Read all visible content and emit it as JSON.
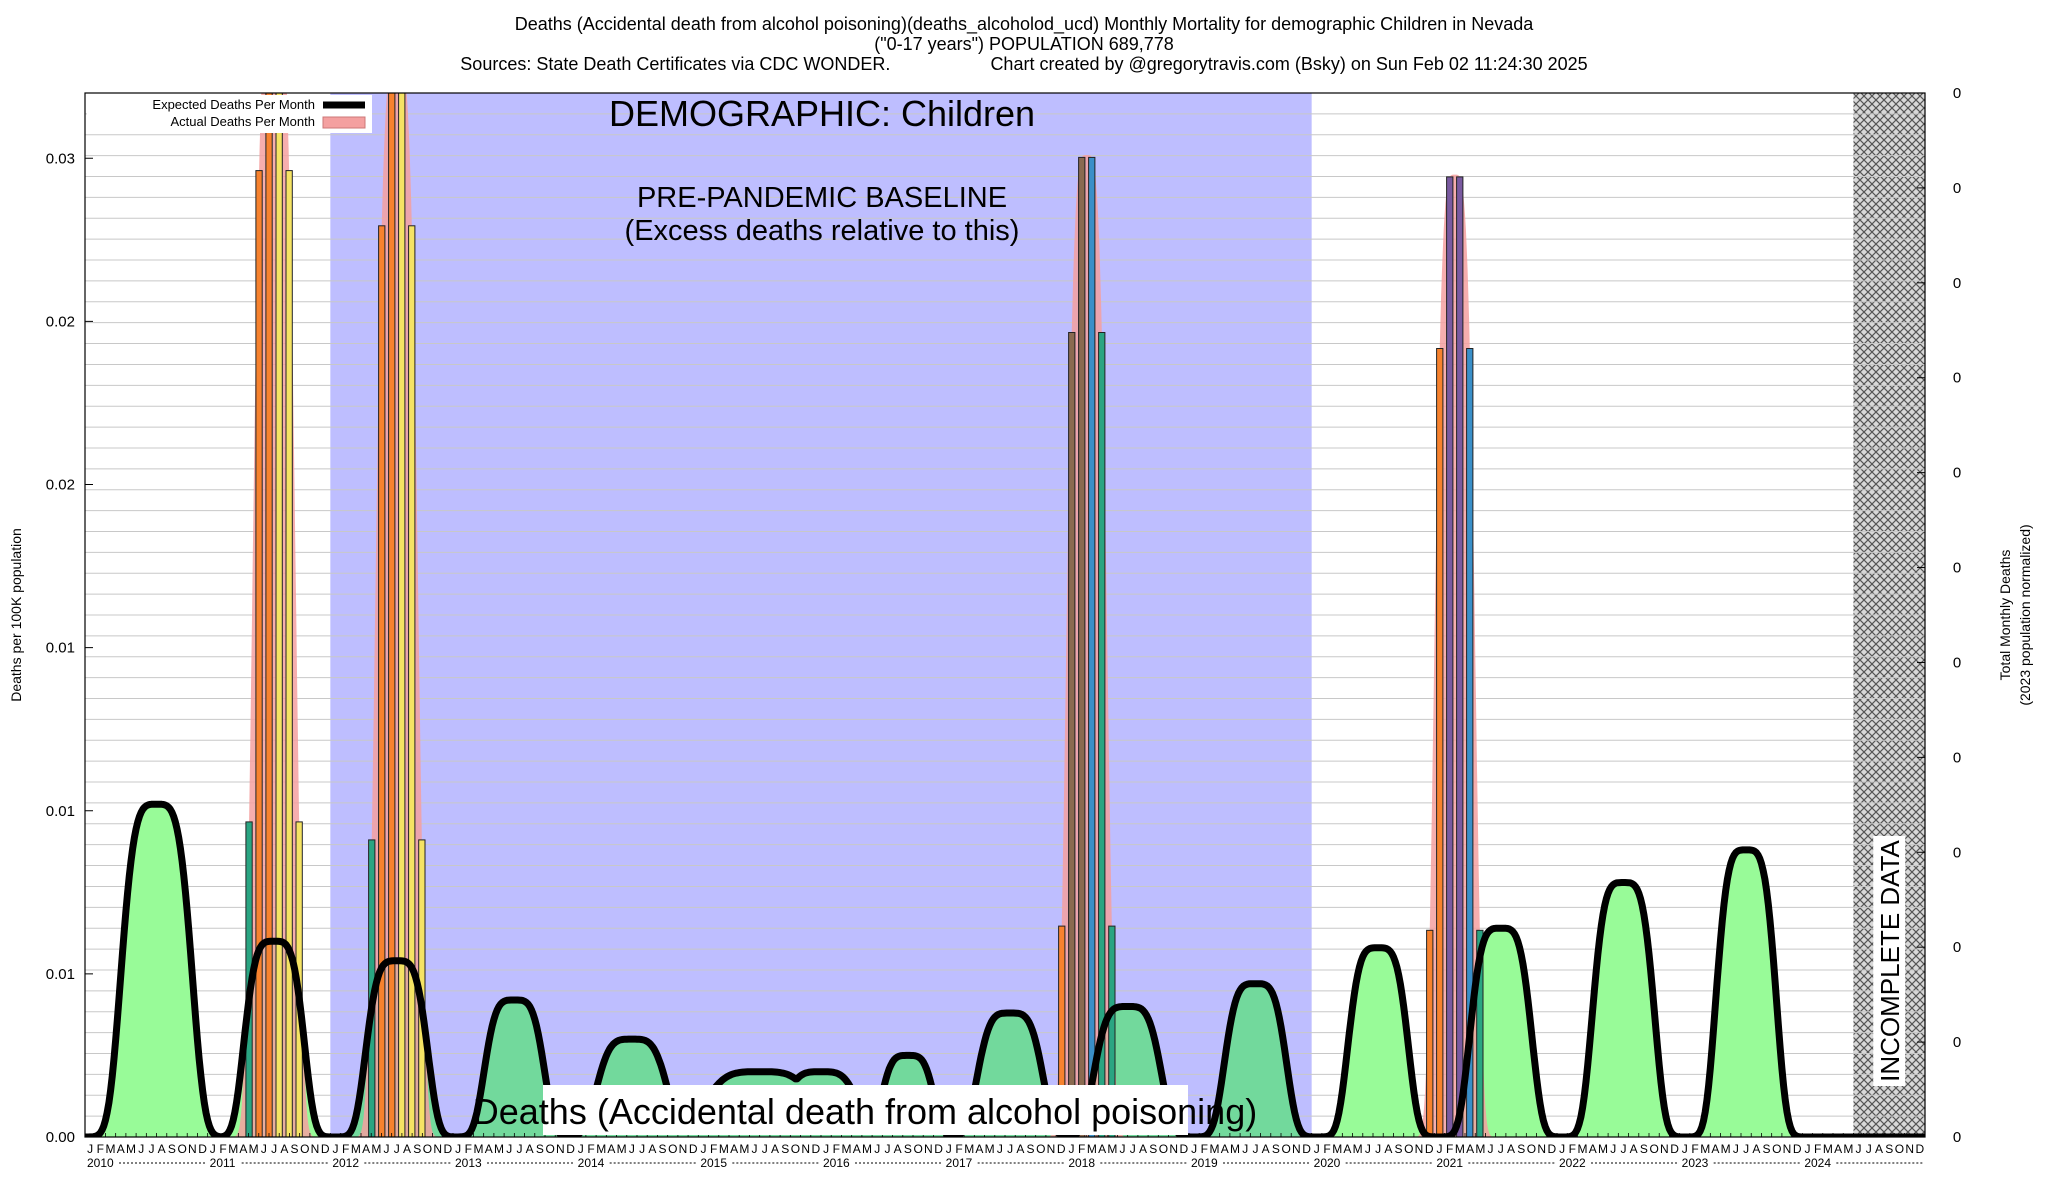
{
  "header": {
    "line1": "Deaths (Accidental death from alcohol poisoning)(deaths_alcoholod_ucd) Monthly Mortality for demographic Children in Nevada",
    "line2": "(\"0-17 years\") POPULATION 689,778",
    "line3_left": "Sources: State Death Certificates via CDC WONDER.",
    "line3_right": "Chart created by @gregorytravis.com (Bsky) on Sun Feb 02 11:24:30 2025"
  },
  "chart_data": {
    "type": "area",
    "ylabel": "Deaths per 100K population",
    "y2label_line1": "Total Monthly Deaths",
    "y2label_line2": "(2023 population normalized)",
    "ylim": [
      0,
      0.032
    ],
    "y_ticks": [
      {
        "value": 0.0,
        "label": "0.00"
      },
      {
        "value": 0.005,
        "label": "0.01"
      },
      {
        "value": 0.01,
        "label": "0.01"
      },
      {
        "value": 0.015,
        "label": "0.01"
      },
      {
        "value": 0.02,
        "label": "0.02"
      },
      {
        "value": 0.025,
        "label": "0.02"
      },
      {
        "value": 0.03,
        "label": "0.03"
      }
    ],
    "y2_tick_labels": [
      "0",
      "0",
      "0",
      "0",
      "0",
      "0",
      "0",
      "0",
      "0",
      "0",
      "0",
      "0"
    ],
    "x_start": "2010-01",
    "x_end": "2024-12",
    "years": [
      "2010",
      "2011",
      "2012",
      "2013",
      "2014",
      "2015",
      "2016",
      "2017",
      "2018",
      "2019",
      "2020",
      "2021",
      "2022",
      "2023",
      "2024"
    ],
    "month_letters": [
      "J",
      "F",
      "M",
      "A",
      "M",
      "J",
      "J",
      "A",
      "S",
      "O",
      "N",
      "D"
    ],
    "grid": true,
    "legend": {
      "position": "top-left",
      "expected_label": "Expected Deaths Per Month",
      "actual_label": "Actual Deaths Per Month"
    },
    "baseline_region": {
      "start": "2012-01",
      "end": "2019-12",
      "color": "#bebeff"
    },
    "incomplete_region": {
      "start": "2024-06",
      "end": "2024-12",
      "label": "INCOMPLETE DATA"
    },
    "annotations": {
      "demographic": "DEMOGRAPHIC: Children",
      "baseline_line1": "PRE-PANDEMIC BASELINE",
      "baseline_line2": "(Excess deaths relative to this)",
      "bottom_label": "Deaths (Accidental death from alcohol poisoning)"
    },
    "colors": {
      "excess_fill": "#98fb98",
      "baseline_fill": "#72d99c",
      "expected_line": "#000000",
      "actual_band": "#f4a0a0",
      "bar_orange": "#f7822e",
      "bar_yellow": "#f5e364",
      "bar_teal": "#2aa582",
      "bar_blue": "#3a8fc8",
      "bar_purple": "#7a5aa0",
      "bar_brown": "#8a6a50"
    },
    "expected_peaks": [
      {
        "center": 7.0,
        "height": 0.0102,
        "width": 3.8
      },
      {
        "center": 18.5,
        "height": 0.006,
        "width": 3.2
      },
      {
        "center": 30.5,
        "height": 0.0054,
        "width": 3.3
      },
      {
        "center": 42.0,
        "height": 0.0042,
        "width": 3.2
      },
      {
        "center": 53.5,
        "height": 0.003,
        "width": 3.8
      },
      {
        "center": 66.0,
        "height": 0.002,
        "width": 6.0
      },
      {
        "center": 72.0,
        "height": 0.002,
        "width": 4.0
      },
      {
        "center": 80.5,
        "height": 0.0025,
        "width": 2.8
      },
      {
        "center": 90.5,
        "height": 0.0038,
        "width": 3.5
      },
      {
        "center": 102.0,
        "height": 0.004,
        "width": 3.6
      },
      {
        "center": 114.5,
        "height": 0.0047,
        "width": 3.3
      },
      {
        "center": 126.5,
        "height": 0.0058,
        "width": 3.2
      },
      {
        "center": 138.5,
        "height": 0.0064,
        "width": 3.3
      },
      {
        "center": 150.5,
        "height": 0.0078,
        "width": 3.3
      },
      {
        "center": 162.5,
        "height": 0.0088,
        "width": 3.2
      }
    ],
    "actual_peaks": [
      {
        "center": 18.5,
        "height": 0.035,
        "width": 2.3,
        "colors": [
          "#3a8fc8",
          "#2aa582",
          "#f7822e",
          "#f7822e",
          "#f5e364",
          "#f5e364",
          "#f5e364",
          "#f5e364"
        ]
      },
      {
        "center": 30.5,
        "height": 0.033,
        "width": 2.3,
        "colors": [
          "#2aa582",
          "#2aa582",
          "#f7822e",
          "#f7822e",
          "#f5e364",
          "#f5e364",
          "#f5e364",
          "#f5e364"
        ]
      },
      {
        "center": 98.0,
        "height": 0.0301,
        "width": 2.2,
        "colors": [
          "#f7822e",
          "#f7822e",
          "#8a6a50",
          "#8a6a50",
          "#3a8fc8",
          "#2aa582",
          "#2aa582",
          "#2aa582"
        ]
      },
      {
        "center": 134.0,
        "height": 0.0295,
        "width": 2.2,
        "colors": [
          "#f7822e",
          "#f7822e",
          "#f7822e",
          "#7a5aa0",
          "#7a5aa0",
          "#3a8fc8",
          "#2aa582",
          "#2aa582"
        ]
      }
    ]
  }
}
